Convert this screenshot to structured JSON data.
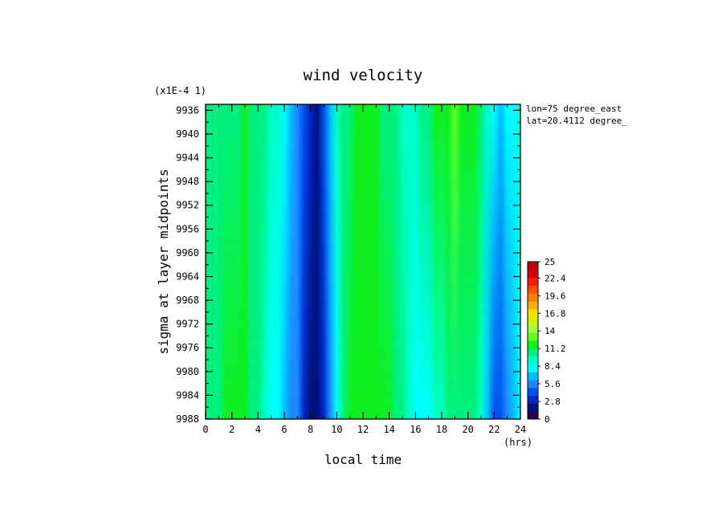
{
  "chart_data": {
    "type": "heatmap",
    "title": "wind velocity",
    "xlabel": "local time",
    "xunit": "(hrs)",
    "ylabel": "sigma at layer midpoints",
    "yscale_note": "(x1E-4 1)",
    "info": [
      "lon=75 degree_east",
      "lat=20.4112 degree_"
    ],
    "xlim": [
      0,
      24
    ],
    "ylim": [
      9988,
      9935
    ],
    "x_ticks": [
      0,
      2,
      4,
      6,
      8,
      10,
      12,
      14,
      16,
      18,
      20,
      22,
      24
    ],
    "y_ticks": [
      9936,
      9940,
      9944,
      9948,
      9952,
      9956,
      9960,
      9964,
      9968,
      9972,
      9976,
      9980,
      9984,
      9988
    ],
    "x": [
      0,
      0.5,
      1,
      1.5,
      2,
      2.5,
      3,
      3.5,
      4,
      4.5,
      5,
      5.5,
      6,
      6.5,
      7,
      7.5,
      8,
      8.5,
      9,
      9.5,
      10,
      10.5,
      11,
      11.5,
      12,
      12.5,
      13,
      13.5,
      14,
      14.5,
      15,
      15.5,
      16,
      16.5,
      17,
      17.5,
      18,
      18.5,
      19,
      19.5,
      20,
      20.5,
      21,
      21.5,
      22,
      22.5,
      23,
      23.5,
      24
    ],
    "y": [
      9936,
      9988
    ],
    "z_top": [
      10.2,
      10.3,
      10.6,
      10.8,
      11.0,
      11.2,
      11.3,
      11.0,
      10.6,
      10.2,
      9.6,
      8.9,
      8.0,
      6.8,
      5.4,
      3.9,
      2.5,
      2.3,
      3.8,
      6.3,
      8.8,
      10.3,
      11.1,
      11.6,
      11.9,
      12.1,
      11.8,
      11.2,
      10.5,
      10.0,
      9.6,
      9.6,
      9.8,
      10.2,
      10.8,
      11.5,
      12.0,
      12.3,
      12.5,
      12.3,
      12.0,
      11.6,
      10.8,
      9.5,
      8.0,
      7.0,
      7.5,
      8.5,
      9.8
    ],
    "z_bottom": [
      10.5,
      10.8,
      11.1,
      11.5,
      11.9,
      12.1,
      11.8,
      11.0,
      10.0,
      9.2,
      8.6,
      7.9,
      7.2,
      6.2,
      5.0,
      3.5,
      2.2,
      2.1,
      3.4,
      5.8,
      8.3,
      10.5,
      11.4,
      11.9,
      12.2,
      12.4,
      12.2,
      11.6,
      11.4,
      10.9,
      10.2,
      9.3,
      8.6,
      8.2,
      8.6,
      9.2,
      9.8,
      10.3,
      10.7,
      11.2,
      11.1,
      10.4,
      9.2,
      6.5,
      4.8,
      4.6,
      5.1,
      6.3,
      8.0
    ],
    "colorbar": {
      "min": 0,
      "max": 25,
      "tick_labels": [
        "0",
        "2.8",
        "5.6",
        "8.4",
        "11.2",
        "14",
        "16.8",
        "19.6",
        "22.4",
        "25"
      ],
      "colors": [
        "#2a0050",
        "#00127a",
        "#0028c8",
        "#0050f0",
        "#1e88ff",
        "#00c0ff",
        "#00ffff",
        "#00ffc8",
        "#00f080",
        "#10f020",
        "#60ff20",
        "#a0ff40",
        "#d0f000",
        "#f8e000",
        "#ffb000",
        "#ff8000",
        "#ff5000",
        "#ee2000",
        "#d00000",
        "#c00000"
      ]
    }
  }
}
